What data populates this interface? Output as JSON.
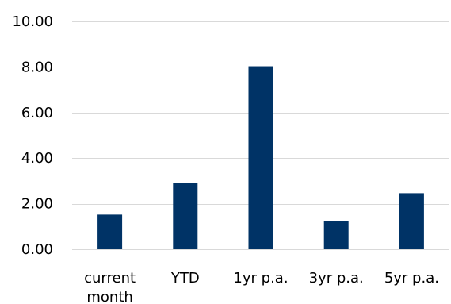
{
  "chart_data": {
    "type": "bar",
    "categories": [
      "current month",
      "YTD",
      "1yr p.a.",
      "3yr p.a.",
      "5yr p.a."
    ],
    "category_label_lines": [
      [
        "current",
        "month"
      ],
      [
        "YTD"
      ],
      [
        "1yr p.a."
      ],
      [
        "3yr p.a."
      ],
      [
        "5yr p.a."
      ]
    ],
    "values": [
      1.52,
      2.9,
      8.03,
      1.22,
      2.46
    ],
    "ylim": [
      0,
      10
    ],
    "yticks": [
      "0.00",
      "2.00",
      "4.00",
      "6.00",
      "8.00",
      "10.00"
    ],
    "ytick_values": [
      0,
      2,
      4,
      6,
      8,
      10
    ],
    "grid": true,
    "legend": "none",
    "bar_color": "#003366",
    "grid_color": "#d9d9d9"
  }
}
